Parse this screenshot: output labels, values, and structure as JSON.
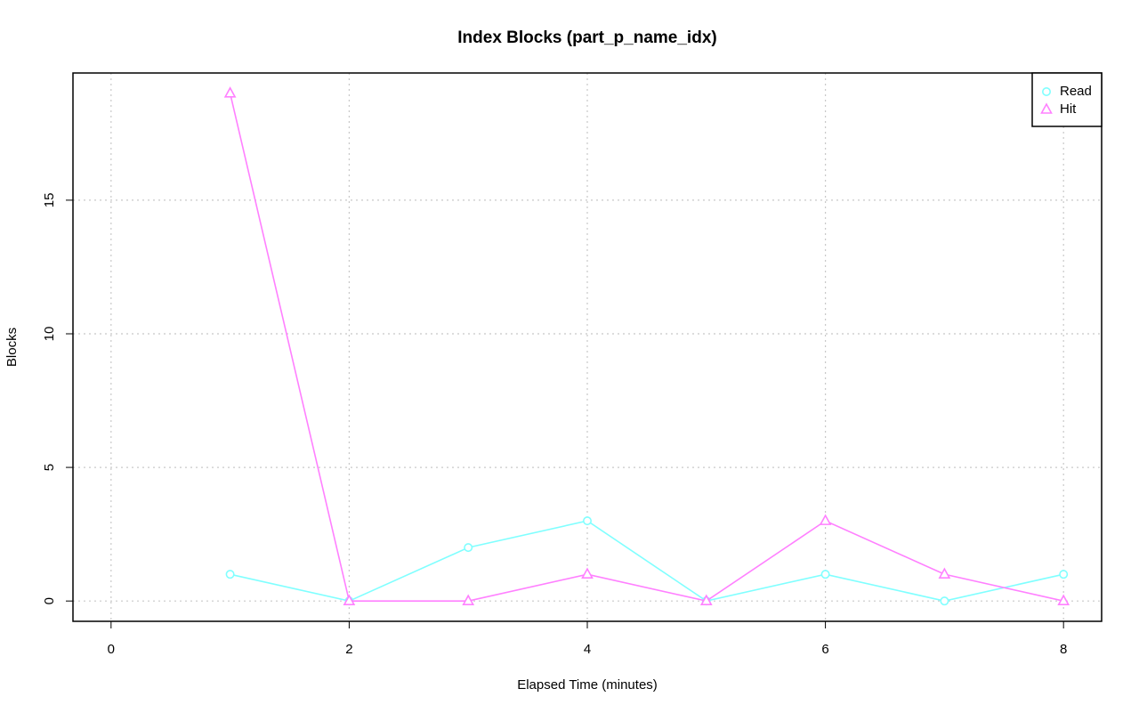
{
  "chart_data": {
    "type": "line",
    "title": "Index Blocks (part_p_name_idx)",
    "x_label": "Elapsed Time (minutes)",
    "y_label": "Blocks",
    "x": [
      1,
      2,
      3,
      4,
      5,
      6,
      7,
      8
    ],
    "series": [
      {
        "name": "Read",
        "color": "#80ffff",
        "marker": "circle",
        "values": [
          1,
          0,
          2,
          3,
          0,
          1,
          0,
          1
        ]
      },
      {
        "name": "Hit",
        "color": "#ff80ff",
        "marker": "triangle",
        "values": [
          19,
          0,
          0,
          1,
          0,
          3,
          1,
          0
        ]
      }
    ],
    "xlim": [
      -0.32,
      8.32
    ],
    "xticks": [
      0,
      2,
      4,
      6,
      8
    ],
    "ylim": [
      -0.76,
      19.76
    ],
    "yticks": [
      0,
      5,
      10,
      15
    ],
    "grid": true,
    "legend": "top-right"
  }
}
